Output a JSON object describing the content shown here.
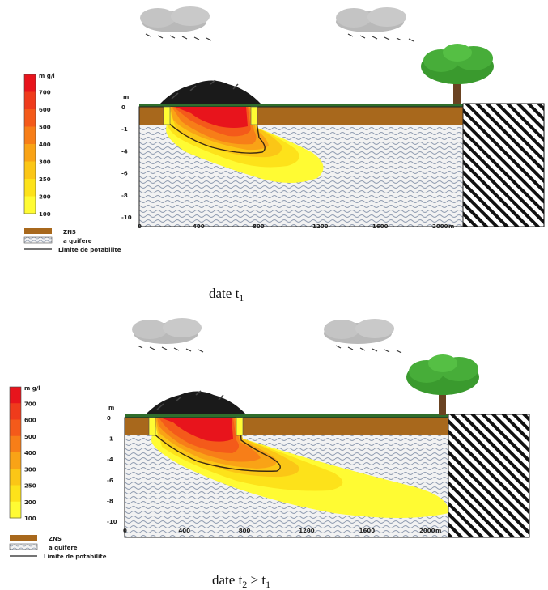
{
  "colorbar": {
    "unit": "m g/l",
    "labels": [
      "700",
      "600",
      "500",
      "400",
      "300",
      "250",
      "200",
      "100"
    ],
    "colors": [
      "#e8141c",
      "#ef3b1c",
      "#f45a1a",
      "#f77e18",
      "#f9a316",
      "#fbc616",
      "#fde21a",
      "#fffb33"
    ]
  },
  "legend": [
    {
      "label": "ZNS",
      "kind": "zns"
    },
    {
      "label": "a quifere",
      "kind": "aquifer"
    },
    {
      "label": "Limite de potabilite",
      "kind": "line"
    }
  ],
  "axes": {
    "x_unit": "m",
    "x_ticks": [
      "0",
      "400",
      "800",
      "1200",
      "1600",
      "2000"
    ],
    "y_unit": "m",
    "y_ticks": [
      "0",
      "-1",
      "-4",
      "-6",
      "-8",
      "-10"
    ]
  },
  "panel1": {
    "caption": "date t",
    "caption_sub": "1"
  },
  "panel2": {
    "caption": "date t",
    "caption_sub": "2",
    "caption_rel": " > t",
    "caption_sub2": "1"
  },
  "colors": {
    "zns": "#a8681c",
    "aquifer_bg": "#f2f2f2",
    "aquifer_wave": "#9aa6b8",
    "grass": "#2f6e2c",
    "waste_heap": "#1a1a1a",
    "tree_foliage": "#3a9a2e",
    "tree_trunk": "#6a4322",
    "cloud": "#b9b9b9",
    "rain": "#333333",
    "plume_contour": "#3c2a12"
  }
}
